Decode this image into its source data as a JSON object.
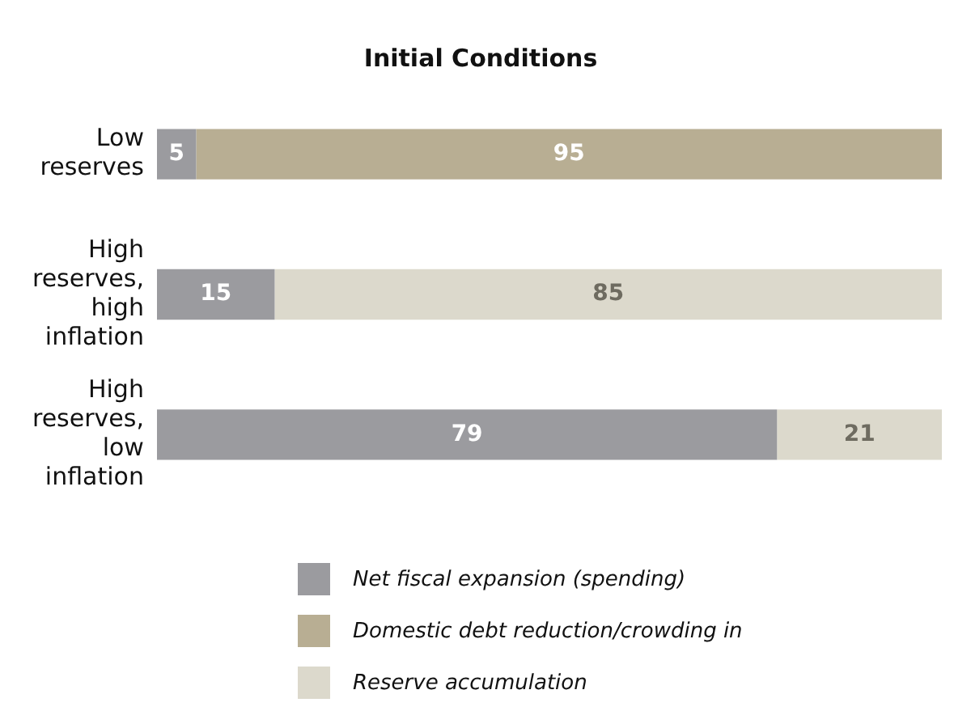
{
  "chart_data": {
    "type": "bar",
    "title": "Initial Conditions",
    "orientation": "horizontal",
    "stacked": true,
    "categories": [
      "Low reserves",
      "High reserves, high inflation",
      "High reserves, low inflation"
    ],
    "series": [
      {
        "name": "Net fiscal expansion (spending)",
        "color": "#9b9b9f",
        "values": [
          5,
          15,
          79
        ]
      },
      {
        "name": "Domestic debt reduction/crowding in",
        "color": "#b8ae93",
        "values": [
          95,
          null,
          null
        ]
      },
      {
        "name": "Reserve accumulation",
        "color": "#dcd9cc",
        "values": [
          null,
          85,
          21
        ]
      }
    ],
    "data_labels": true,
    "grid": false,
    "legend": "bottom",
    "tick_labels": "y"
  }
}
